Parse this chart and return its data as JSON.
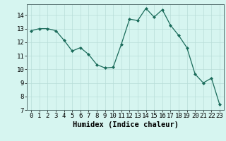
{
  "x": [
    0,
    1,
    2,
    3,
    4,
    5,
    6,
    7,
    8,
    9,
    10,
    11,
    12,
    13,
    14,
    15,
    16,
    17,
    18,
    19,
    20,
    21,
    22,
    23
  ],
  "y": [
    12.85,
    13.0,
    13.0,
    12.85,
    12.15,
    11.35,
    11.6,
    11.1,
    10.35,
    10.1,
    10.15,
    11.85,
    13.7,
    13.6,
    14.5,
    13.85,
    14.4,
    13.25,
    12.5,
    11.6,
    9.65,
    9.0,
    9.35,
    7.4
  ],
  "xlabel": "Humidex (Indice chaleur)",
  "ylim": [
    7,
    14.8
  ],
  "yticks": [
    7,
    8,
    9,
    10,
    11,
    12,
    13,
    14
  ],
  "xticks": [
    0,
    1,
    2,
    3,
    4,
    5,
    6,
    7,
    8,
    9,
    10,
    11,
    12,
    13,
    14,
    15,
    16,
    17,
    18,
    19,
    20,
    21,
    22,
    23
  ],
  "line_color": "#1a6b5a",
  "marker": "D",
  "marker_size": 2.0,
  "bg_color": "#d6f5f0",
  "grid_color": "#b8ddd8",
  "xlabel_fontsize": 7.5,
  "tick_fontsize": 6.5
}
